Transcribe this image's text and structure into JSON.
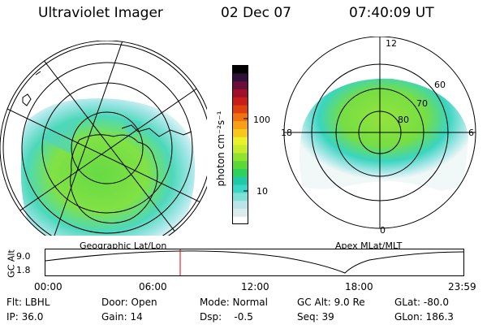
{
  "header": {
    "instrument": "Ultraviolet Imager",
    "date": "02 Dec 07",
    "time": "07:40:09 UT"
  },
  "left_panel": {
    "caption": "Geographic Lat/Lon"
  },
  "right_panel": {
    "caption": "Apex MLat/MLT",
    "mlt_labels": {
      "top": "12",
      "left": "18",
      "right": "6",
      "bottom": "0"
    },
    "lat_labels": [
      "60",
      "70",
      "80"
    ]
  },
  "colorbar": {
    "unit_html": "photon cm⁻²s⁻¹",
    "ticks": [
      "100",
      "10"
    ],
    "colors": [
      "#ffffff",
      "#dcebee",
      "#b9e4e9",
      "#7fe0d8",
      "#3ad6c6",
      "#1fc9a8",
      "#2dd25a",
      "#5ad83a",
      "#8fe22e",
      "#c6ec2c",
      "#e9f12a",
      "#f9c61c",
      "#f7a014",
      "#ef7410",
      "#e0400e",
      "#c81e1a",
      "#a0102a",
      "#6a0f3c",
      "#30103a",
      "#000000"
    ]
  },
  "timeline": {
    "y_axis_title": "GC Alt",
    "y_ticks": [
      "9.0",
      "1.8"
    ],
    "x_ticks": [
      "00:00",
      "06:00",
      "12:00",
      "18:00",
      "23:59"
    ]
  },
  "info": {
    "row1": [
      "Flt: LBHL",
      "Door: Open",
      "Mode: Normal",
      "GC Alt: 9.0 Re",
      "GLat: -80.0"
    ],
    "row2": [
      "IP: 36.0",
      "Gain: 14",
      "Dsp:    -0.5",
      "Seq: 39",
      "GLon: 186.3"
    ]
  }
}
